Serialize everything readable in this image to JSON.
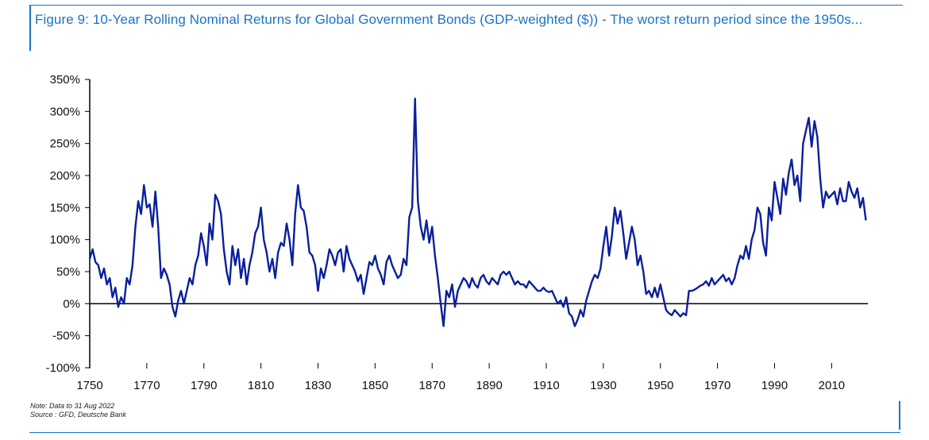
{
  "title": "Figure 9: 10-Year Rolling Nominal Returns for Global Government Bonds (GDP-weighted ($)) - The worst return period since the 1950s...",
  "note": "Note: Data to 31 Aug 2022",
  "source": "Source : GFD, Deutsche Bank",
  "colors": {
    "line": "#0a1f9c",
    "frame": "#1a73c9"
  },
  "chart_data": {
    "type": "line",
    "title": "Figure 9: 10-Year Rolling Nominal Returns for Global Government Bonds (GDP-weighted ($)) - The worst return period since the 1950s...",
    "xlabel": "",
    "ylabel": "",
    "xlim": [
      1750,
      2022.7
    ],
    "ylim": [
      -100,
      350
    ],
    "x_ticks": [
      1750,
      1770,
      1790,
      1810,
      1830,
      1850,
      1870,
      1890,
      1910,
      1930,
      1950,
      1970,
      1990,
      2010
    ],
    "y_ticks": [
      {
        "value": 350,
        "label": "350%"
      },
      {
        "value": 300,
        "label": "300%"
      },
      {
        "value": 250,
        "label": "250%"
      },
      {
        "value": 200,
        "label": "200%"
      },
      {
        "value": 150,
        "label": "150%"
      },
      {
        "value": 100,
        "label": "100%"
      },
      {
        "value": 50,
        "label": "50%"
      },
      {
        "value": 0,
        "label": "0%"
      },
      {
        "value": -50,
        "label": "-50%"
      },
      {
        "value": -100,
        "label": "-100%"
      }
    ],
    "grid": false,
    "series": [
      {
        "name": "",
        "points": [
          [
            1750,
            70
          ],
          [
            1751,
            85
          ],
          [
            1752,
            65
          ],
          [
            1753,
            60
          ],
          [
            1754,
            40
          ],
          [
            1755,
            55
          ],
          [
            1756,
            30
          ],
          [
            1757,
            40
          ],
          [
            1758,
            10
          ],
          [
            1759,
            25
          ],
          [
            1760,
            -5
          ],
          [
            1761,
            10
          ],
          [
            1762,
            0
          ],
          [
            1763,
            40
          ],
          [
            1764,
            30
          ],
          [
            1765,
            60
          ],
          [
            1766,
            120
          ],
          [
            1767,
            160
          ],
          [
            1768,
            140
          ],
          [
            1769,
            185
          ],
          [
            1770,
            150
          ],
          [
            1771,
            155
          ],
          [
            1772,
            120
          ],
          [
            1773,
            175
          ],
          [
            1774,
            120
          ],
          [
            1775,
            40
          ],
          [
            1776,
            55
          ],
          [
            1777,
            45
          ],
          [
            1778,
            30
          ],
          [
            1779,
            -5
          ],
          [
            1780,
            -20
          ],
          [
            1781,
            5
          ],
          [
            1782,
            20
          ],
          [
            1783,
            0
          ],
          [
            1784,
            20
          ],
          [
            1785,
            40
          ],
          [
            1786,
            30
          ],
          [
            1787,
            60
          ],
          [
            1788,
            75
          ],
          [
            1789,
            110
          ],
          [
            1790,
            90
          ],
          [
            1791,
            60
          ],
          [
            1792,
            125
          ],
          [
            1793,
            100
          ],
          [
            1794,
            170
          ],
          [
            1795,
            160
          ],
          [
            1796,
            140
          ],
          [
            1797,
            85
          ],
          [
            1798,
            50
          ],
          [
            1799,
            30
          ],
          [
            1800,
            90
          ],
          [
            1801,
            60
          ],
          [
            1802,
            85
          ],
          [
            1803,
            40
          ],
          [
            1804,
            70
          ],
          [
            1805,
            30
          ],
          [
            1806,
            60
          ],
          [
            1807,
            80
          ],
          [
            1808,
            110
          ],
          [
            1809,
            120
          ],
          [
            1810,
            150
          ],
          [
            1811,
            100
          ],
          [
            1812,
            80
          ],
          [
            1813,
            50
          ],
          [
            1814,
            70
          ],
          [
            1815,
            40
          ],
          [
            1816,
            80
          ],
          [
            1817,
            95
          ],
          [
            1818,
            90
          ],
          [
            1819,
            125
          ],
          [
            1820,
            100
          ],
          [
            1821,
            60
          ],
          [
            1822,
            140
          ],
          [
            1823,
            185
          ],
          [
            1824,
            150
          ],
          [
            1825,
            145
          ],
          [
            1826,
            120
          ],
          [
            1827,
            80
          ],
          [
            1828,
            75
          ],
          [
            1829,
            60
          ],
          [
            1830,
            20
          ],
          [
            1831,
            55
          ],
          [
            1832,
            40
          ],
          [
            1833,
            60
          ],
          [
            1834,
            85
          ],
          [
            1835,
            75
          ],
          [
            1836,
            60
          ],
          [
            1837,
            80
          ],
          [
            1838,
            85
          ],
          [
            1839,
            50
          ],
          [
            1840,
            90
          ],
          [
            1841,
            70
          ],
          [
            1842,
            60
          ],
          [
            1843,
            50
          ],
          [
            1844,
            35
          ],
          [
            1845,
            45
          ],
          [
            1846,
            15
          ],
          [
            1847,
            40
          ],
          [
            1848,
            65
          ],
          [
            1849,
            60
          ],
          [
            1850,
            75
          ],
          [
            1851,
            55
          ],
          [
            1852,
            45
          ],
          [
            1853,
            30
          ],
          [
            1854,
            65
          ],
          [
            1855,
            75
          ],
          [
            1856,
            60
          ],
          [
            1857,
            50
          ],
          [
            1858,
            40
          ],
          [
            1859,
            45
          ],
          [
            1860,
            70
          ],
          [
            1861,
            60
          ],
          [
            1862,
            135
          ],
          [
            1863,
            150
          ],
          [
            1864,
            320
          ],
          [
            1865,
            160
          ],
          [
            1866,
            120
          ],
          [
            1867,
            100
          ],
          [
            1868,
            130
          ],
          [
            1869,
            95
          ],
          [
            1870,
            120
          ],
          [
            1871,
            75
          ],
          [
            1872,
            40
          ],
          [
            1873,
            0
          ],
          [
            1874,
            -35
          ],
          [
            1875,
            20
          ],
          [
            1876,
            10
          ],
          [
            1877,
            30
          ],
          [
            1878,
            -5
          ],
          [
            1879,
            20
          ],
          [
            1880,
            30
          ],
          [
            1881,
            40
          ],
          [
            1882,
            35
          ],
          [
            1883,
            25
          ],
          [
            1884,
            40
          ],
          [
            1885,
            30
          ],
          [
            1886,
            25
          ],
          [
            1887,
            40
          ],
          [
            1888,
            45
          ],
          [
            1889,
            35
          ],
          [
            1890,
            30
          ],
          [
            1891,
            40
          ],
          [
            1892,
            35
          ],
          [
            1893,
            30
          ],
          [
            1894,
            45
          ],
          [
            1895,
            50
          ],
          [
            1896,
            45
          ],
          [
            1897,
            50
          ],
          [
            1898,
            40
          ],
          [
            1899,
            30
          ],
          [
            1900,
            35
          ],
          [
            1901,
            30
          ],
          [
            1902,
            30
          ],
          [
            1903,
            25
          ],
          [
            1904,
            35
          ],
          [
            1905,
            30
          ],
          [
            1906,
            25
          ],
          [
            1907,
            20
          ],
          [
            1908,
            20
          ],
          [
            1909,
            25
          ],
          [
            1910,
            20
          ],
          [
            1911,
            18
          ],
          [
            1912,
            20
          ],
          [
            1913,
            10
          ],
          [
            1914,
            0
          ],
          [
            1915,
            5
          ],
          [
            1916,
            -5
          ],
          [
            1917,
            10
          ],
          [
            1918,
            -15
          ],
          [
            1919,
            -20
          ],
          [
            1920,
            -35
          ],
          [
            1921,
            -25
          ],
          [
            1922,
            -10
          ],
          [
            1923,
            -20
          ],
          [
            1924,
            5
          ],
          [
            1925,
            20
          ],
          [
            1926,
            35
          ],
          [
            1927,
            45
          ],
          [
            1928,
            40
          ],
          [
            1929,
            55
          ],
          [
            1930,
            90
          ],
          [
            1931,
            120
          ],
          [
            1932,
            75
          ],
          [
            1933,
            105
          ],
          [
            1934,
            150
          ],
          [
            1935,
            125
          ],
          [
            1936,
            145
          ],
          [
            1937,
            110
          ],
          [
            1938,
            70
          ],
          [
            1939,
            95
          ],
          [
            1940,
            120
          ],
          [
            1941,
            100
          ],
          [
            1942,
            60
          ],
          [
            1943,
            75
          ],
          [
            1944,
            50
          ],
          [
            1945,
            15
          ],
          [
            1946,
            20
          ],
          [
            1947,
            10
          ],
          [
            1948,
            25
          ],
          [
            1949,
            10
          ],
          [
            1950,
            30
          ],
          [
            1951,
            10
          ],
          [
            1952,
            -10
          ],
          [
            1953,
            -15
          ],
          [
            1954,
            -18
          ],
          [
            1955,
            -10
          ],
          [
            1956,
            -15
          ],
          [
            1957,
            -20
          ],
          [
            1958,
            -15
          ],
          [
            1959,
            -18
          ],
          [
            1960,
            20
          ],
          [
            1961,
            20
          ],
          [
            1962,
            22
          ],
          [
            1963,
            25
          ],
          [
            1964,
            28
          ],
          [
            1965,
            30
          ],
          [
            1966,
            35
          ],
          [
            1967,
            28
          ],
          [
            1968,
            40
          ],
          [
            1969,
            30
          ],
          [
            1970,
            35
          ],
          [
            1971,
            40
          ],
          [
            1972,
            45
          ],
          [
            1973,
            35
          ],
          [
            1974,
            40
          ],
          [
            1975,
            30
          ],
          [
            1976,
            40
          ],
          [
            1977,
            60
          ],
          [
            1978,
            75
          ],
          [
            1979,
            70
          ],
          [
            1980,
            90
          ],
          [
            1981,
            70
          ],
          [
            1982,
            100
          ],
          [
            1983,
            115
          ],
          [
            1984,
            150
          ],
          [
            1985,
            140
          ],
          [
            1986,
            95
          ],
          [
            1987,
            75
          ],
          [
            1988,
            150
          ],
          [
            1989,
            130
          ],
          [
            1990,
            190
          ],
          [
            1991,
            165
          ],
          [
            1992,
            140
          ],
          [
            1993,
            195
          ],
          [
            1994,
            170
          ],
          [
            1995,
            205
          ],
          [
            1996,
            225
          ],
          [
            1997,
            185
          ],
          [
            1998,
            200
          ],
          [
            1999,
            160
          ],
          [
            2000,
            250
          ],
          [
            2001,
            270
          ],
          [
            2002,
            290
          ],
          [
            2003,
            245
          ],
          [
            2004,
            285
          ],
          [
            2005,
            260
          ],
          [
            2006,
            195
          ],
          [
            2007,
            150
          ],
          [
            2008,
            175
          ],
          [
            2009,
            165
          ],
          [
            2010,
            170
          ],
          [
            2011,
            175
          ],
          [
            2012,
            155
          ],
          [
            2013,
            180
          ],
          [
            2014,
            160
          ],
          [
            2015,
            160
          ],
          [
            2016,
            190
          ],
          [
            2017,
            175
          ],
          [
            2018,
            165
          ],
          [
            2019,
            180
          ],
          [
            2020,
            150
          ],
          [
            2021,
            165
          ],
          [
            2022,
            130
          ]
        ]
      }
    ]
  }
}
